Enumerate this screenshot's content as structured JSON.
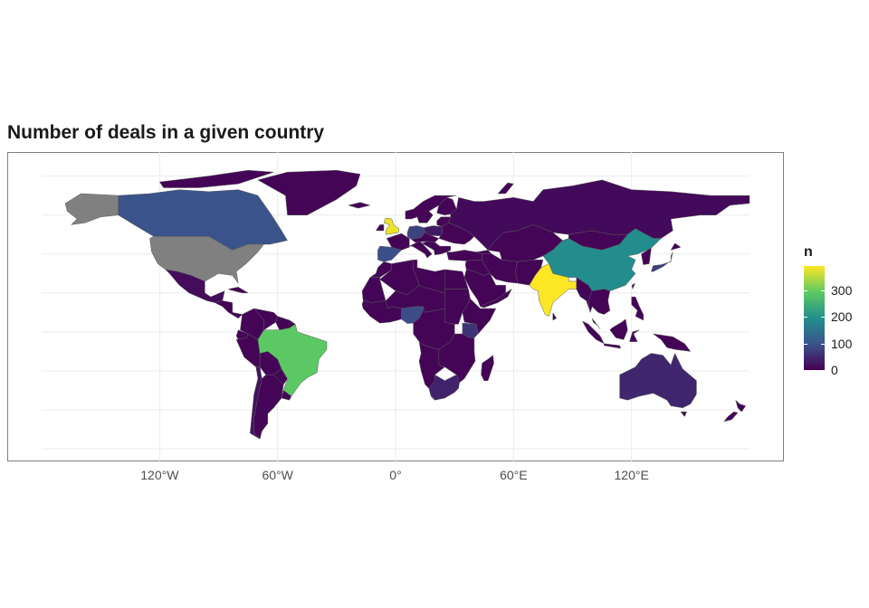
{
  "title": "Number of deals in a given country",
  "x_axis": {
    "ticks": [
      "120°W",
      "60°W",
      "0°",
      "60°E",
      "120°E"
    ],
    "tick_values": [
      -120,
      -60,
      0,
      60,
      120
    ]
  },
  "legend": {
    "title": "n",
    "ticks": [
      "0",
      "100",
      "200",
      "300"
    ],
    "tick_values": [
      0,
      100,
      200,
      300
    ],
    "max": 390
  },
  "colors": {
    "no_data": "#808080",
    "land_border": "#5a5a5a",
    "grid": "#ebebeb"
  },
  "chart_data": {
    "type": "choropleth",
    "title": "Number of deals in a given country",
    "legend_title": "n",
    "scale": "viridis",
    "range": [
      0,
      390
    ],
    "grid": true,
    "legend_placement": "right",
    "estimated_values": [
      {
        "country": "India",
        "n": 390
      },
      {
        "country": "United Kingdom",
        "n": 380
      },
      {
        "country": "Brazil",
        "n": 290
      },
      {
        "country": "China",
        "n": 190
      },
      {
        "country": "Canada",
        "n": 100
      },
      {
        "country": "Spain",
        "n": 95
      },
      {
        "country": "Nigeria",
        "n": 90
      },
      {
        "country": "Germany",
        "n": 80
      },
      {
        "country": "Japan",
        "n": 75
      },
      {
        "country": "Kenya",
        "n": 60
      },
      {
        "country": "Australia",
        "n": 45
      },
      {
        "country": "South Africa",
        "n": 40
      },
      {
        "country": "Poland",
        "n": 30
      },
      {
        "country": "Chile",
        "n": 20
      },
      {
        "country": "Mexico",
        "n": 15
      },
      {
        "country": "Russia",
        "n": 10
      },
      {
        "country": "United States",
        "n": null
      },
      {
        "country": "Alaska",
        "n": null
      }
    ]
  }
}
